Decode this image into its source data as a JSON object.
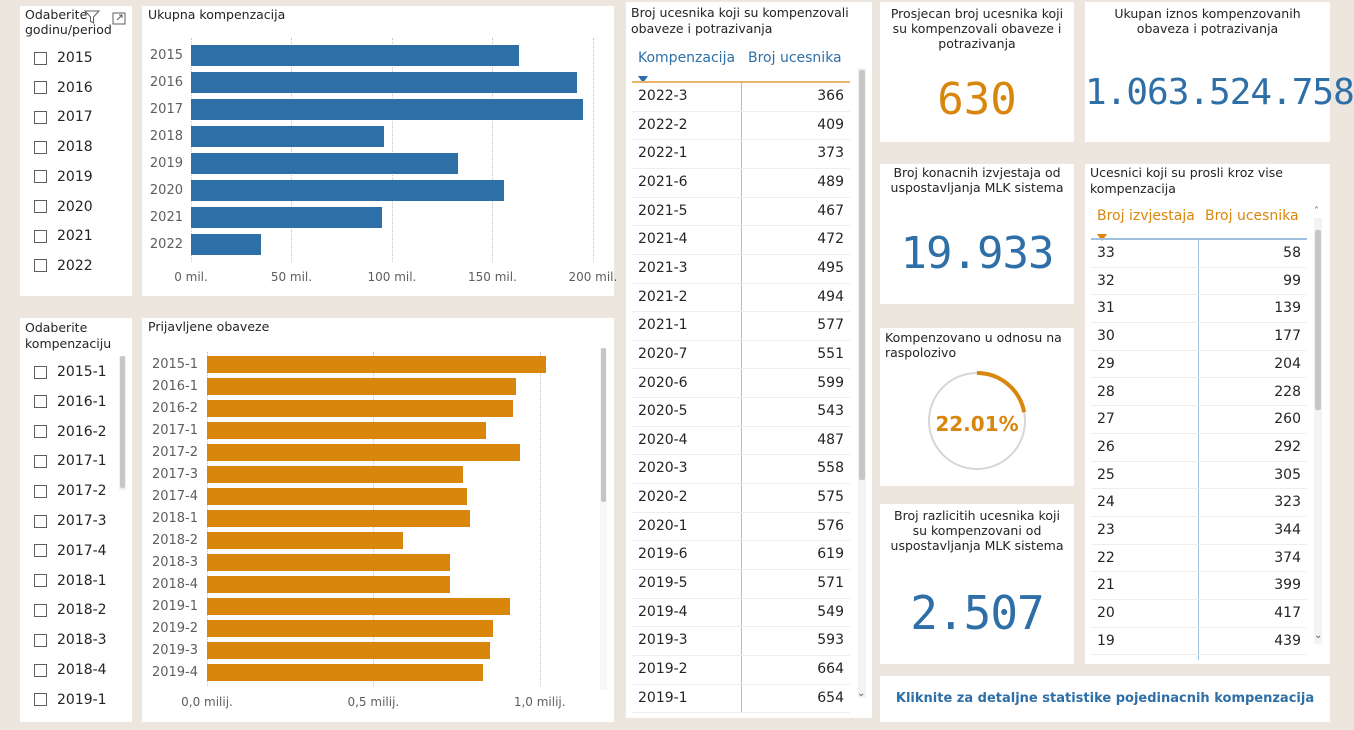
{
  "slicer_year": {
    "title": "Odaberite godinu/period",
    "items": [
      "2015",
      "2016",
      "2017",
      "2018",
      "2019",
      "2020",
      "2021",
      "2022"
    ]
  },
  "slicer_comp": {
    "title": "Odaberite kompenzaciju",
    "items": [
      "2015-1",
      "2016-1",
      "2016-2",
      "2017-1",
      "2017-2",
      "2017-3",
      "2017-4",
      "2018-1",
      "2018-2",
      "2018-3",
      "2018-4",
      "2019-1"
    ]
  },
  "chart_total": {
    "title": "Ukupna kompenzacija",
    "chart_data": {
      "type": "bar",
      "orientation": "horizontal",
      "categories": [
        "2015",
        "2016",
        "2017",
        "2018",
        "2019",
        "2020",
        "2021",
        "2022"
      ],
      "values": [
        163,
        192,
        195,
        96,
        133,
        156,
        95,
        35
      ],
      "unit": "mil.",
      "xlim": [
        0,
        210
      ],
      "ticks": [
        "0 mil.",
        "50 mil.",
        "100 mil.",
        "150 mil.",
        "200 mil."
      ],
      "tick_values": [
        0,
        50,
        100,
        150,
        200
      ],
      "color": "#2e6fa7",
      "grid": true
    }
  },
  "chart_reported": {
    "title": "Prijavljene obaveze",
    "chart_data": {
      "type": "bar",
      "orientation": "horizontal",
      "categories": [
        "2015-1",
        "2016-1",
        "2016-2",
        "2017-1",
        "2017-2",
        "2017-3",
        "2017-4",
        "2018-1",
        "2018-2",
        "2018-3",
        "2018-4",
        "2019-1",
        "2019-2",
        "2019-3",
        "2019-4"
      ],
      "values": [
        1.02,
        0.93,
        0.92,
        0.84,
        0.94,
        0.77,
        0.78,
        0.79,
        0.59,
        0.73,
        0.73,
        0.91,
        0.86,
        0.85,
        0.83
      ],
      "unit": "milij.",
      "xlim": [
        0,
        1.1
      ],
      "ticks": [
        "0,0 milij.",
        "0,5 milij.",
        "1,0 milij."
      ],
      "tick_values": [
        0,
        0.5,
        1.0
      ],
      "color": "#d9860c",
      "grid": true
    }
  },
  "table_participants": {
    "title": "Broj ucesnika koji su kompenzovali obaveze i potrazivanja",
    "col1": "Kompenzacija",
    "col2": "Broj ucesnika",
    "rows": [
      [
        "2022-3",
        "366"
      ],
      [
        "2022-2",
        "409"
      ],
      [
        "2022-1",
        "373"
      ],
      [
        "2021-6",
        "489"
      ],
      [
        "2021-5",
        "467"
      ],
      [
        "2021-4",
        "472"
      ],
      [
        "2021-3",
        "495"
      ],
      [
        "2021-2",
        "494"
      ],
      [
        "2021-1",
        "577"
      ],
      [
        "2020-7",
        "551"
      ],
      [
        "2020-6",
        "599"
      ],
      [
        "2020-5",
        "543"
      ],
      [
        "2020-4",
        "487"
      ],
      [
        "2020-3",
        "558"
      ],
      [
        "2020-2",
        "575"
      ],
      [
        "2020-1",
        "576"
      ],
      [
        "2019-6",
        "619"
      ],
      [
        "2019-5",
        "571"
      ],
      [
        "2019-4",
        "549"
      ],
      [
        "2019-3",
        "593"
      ],
      [
        "2019-2",
        "664"
      ],
      [
        "2019-1",
        "654"
      ]
    ]
  },
  "kpi_avg": {
    "title": "Prosjecan broj ucesnika koji su kompenzovali obaveze i potrazivanja",
    "value": "630",
    "color": "#d9860c"
  },
  "kpi_total": {
    "title": "Ukupan iznos kompenzovanih obaveza i potrazivanja",
    "value": "1.063.524.758",
    "color": "#2e6fa7"
  },
  "kpi_reports": {
    "title": "Broj konacnih izvjestaja od uspostavljanja MLK sistema",
    "value": "19.933",
    "color": "#2e6fa7"
  },
  "kpi_gauge": {
    "title": "Kompenzovano u odnosu na raspolozivo",
    "value": "22.01%",
    "fraction": 0.2201,
    "color": "#d9860c"
  },
  "kpi_distinct": {
    "title": "Broj razlicitih ucesnika koji su kompenzovani od uspostavljanja MLK sistema",
    "value": "2.507",
    "color": "#2e6fa7"
  },
  "table_multi": {
    "title": "Ucesnici koji su prosli kroz vise kompenzacija",
    "col1": "Broj izvjestaja",
    "col2": "Broj ucesnika",
    "rows": [
      [
        "33",
        "58"
      ],
      [
        "32",
        "99"
      ],
      [
        "31",
        "139"
      ],
      [
        "30",
        "177"
      ],
      [
        "29",
        "204"
      ],
      [
        "28",
        "228"
      ],
      [
        "27",
        "260"
      ],
      [
        "26",
        "292"
      ],
      [
        "25",
        "305"
      ],
      [
        "24",
        "323"
      ],
      [
        "23",
        "344"
      ],
      [
        "22",
        "374"
      ],
      [
        "21",
        "399"
      ],
      [
        "20",
        "417"
      ],
      [
        "19",
        "439"
      ]
    ]
  },
  "link_button": {
    "label": "Kliknite za detaljne statistike pojedinacnih kompenzacija"
  }
}
